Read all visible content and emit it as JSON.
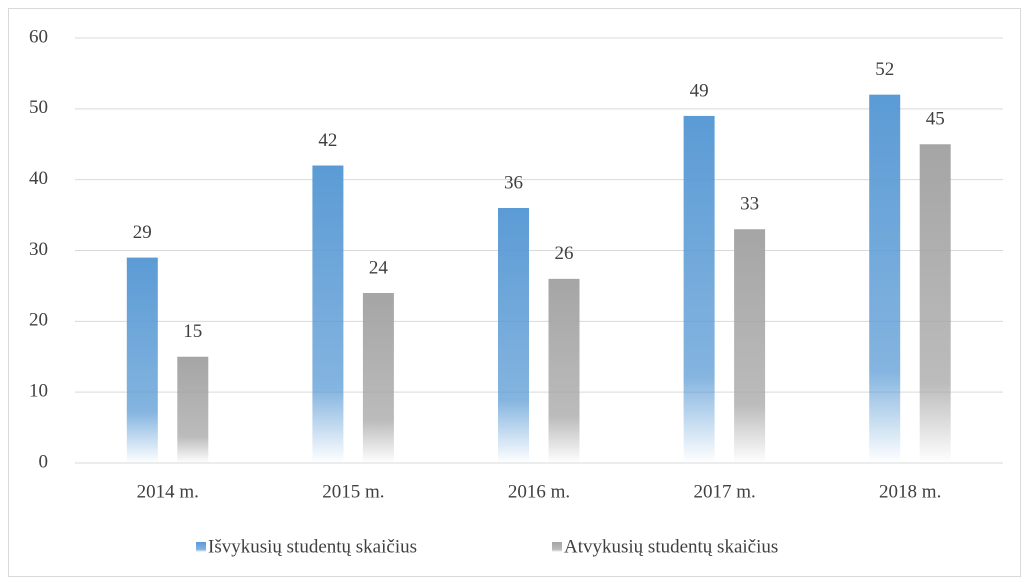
{
  "chart_data": {
    "type": "bar",
    "categories": [
      "2014 m.",
      "2015 m.",
      "2016 m.",
      "2017 m.",
      "2018 m."
    ],
    "series": [
      {
        "name": "Išvykusių studentų skaičius",
        "color": "#5b9bd5",
        "values": [
          29,
          42,
          36,
          49,
          52
        ]
      },
      {
        "name": "Atvykusių studentų skaičius",
        "color": "#a5a5a5",
        "values": [
          15,
          24,
          26,
          33,
          45
        ]
      }
    ],
    "ylim": [
      0,
      60
    ],
    "yticks": [
      0,
      10,
      20,
      30,
      40,
      50,
      60
    ],
    "grid": true,
    "legend": "bottom"
  }
}
